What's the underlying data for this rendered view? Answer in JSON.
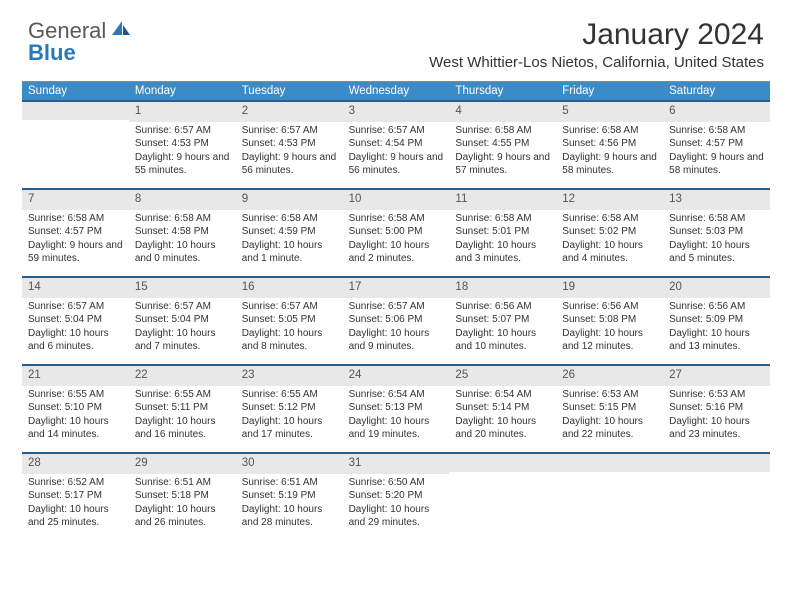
{
  "brand": {
    "part1": "General",
    "part2": "Blue"
  },
  "title": "January 2024",
  "subtitle": "West Whittier-Los Nietos, California, United States",
  "colors": {
    "header_bg": "#3b8bc8",
    "row_border": "#2a5d8a",
    "daynum_bg": "#e8e8e8",
    "text": "#333333",
    "logo_gray": "#595959",
    "logo_blue": "#2a79b8"
  },
  "weekdays": [
    "Sunday",
    "Monday",
    "Tuesday",
    "Wednesday",
    "Thursday",
    "Friday",
    "Saturday"
  ],
  "weeks": [
    [
      {
        "n": "",
        "sr": "",
        "ss": "",
        "dl": ""
      },
      {
        "n": "1",
        "sr": "Sunrise: 6:57 AM",
        "ss": "Sunset: 4:53 PM",
        "dl": "Daylight: 9 hours and 55 minutes."
      },
      {
        "n": "2",
        "sr": "Sunrise: 6:57 AM",
        "ss": "Sunset: 4:53 PM",
        "dl": "Daylight: 9 hours and 56 minutes."
      },
      {
        "n": "3",
        "sr": "Sunrise: 6:57 AM",
        "ss": "Sunset: 4:54 PM",
        "dl": "Daylight: 9 hours and 56 minutes."
      },
      {
        "n": "4",
        "sr": "Sunrise: 6:58 AM",
        "ss": "Sunset: 4:55 PM",
        "dl": "Daylight: 9 hours and 57 minutes."
      },
      {
        "n": "5",
        "sr": "Sunrise: 6:58 AM",
        "ss": "Sunset: 4:56 PM",
        "dl": "Daylight: 9 hours and 58 minutes."
      },
      {
        "n": "6",
        "sr": "Sunrise: 6:58 AM",
        "ss": "Sunset: 4:57 PM",
        "dl": "Daylight: 9 hours and 58 minutes."
      }
    ],
    [
      {
        "n": "7",
        "sr": "Sunrise: 6:58 AM",
        "ss": "Sunset: 4:57 PM",
        "dl": "Daylight: 9 hours and 59 minutes."
      },
      {
        "n": "8",
        "sr": "Sunrise: 6:58 AM",
        "ss": "Sunset: 4:58 PM",
        "dl": "Daylight: 10 hours and 0 minutes."
      },
      {
        "n": "9",
        "sr": "Sunrise: 6:58 AM",
        "ss": "Sunset: 4:59 PM",
        "dl": "Daylight: 10 hours and 1 minute."
      },
      {
        "n": "10",
        "sr": "Sunrise: 6:58 AM",
        "ss": "Sunset: 5:00 PM",
        "dl": "Daylight: 10 hours and 2 minutes."
      },
      {
        "n": "11",
        "sr": "Sunrise: 6:58 AM",
        "ss": "Sunset: 5:01 PM",
        "dl": "Daylight: 10 hours and 3 minutes."
      },
      {
        "n": "12",
        "sr": "Sunrise: 6:58 AM",
        "ss": "Sunset: 5:02 PM",
        "dl": "Daylight: 10 hours and 4 minutes."
      },
      {
        "n": "13",
        "sr": "Sunrise: 6:58 AM",
        "ss": "Sunset: 5:03 PM",
        "dl": "Daylight: 10 hours and 5 minutes."
      }
    ],
    [
      {
        "n": "14",
        "sr": "Sunrise: 6:57 AM",
        "ss": "Sunset: 5:04 PM",
        "dl": "Daylight: 10 hours and 6 minutes."
      },
      {
        "n": "15",
        "sr": "Sunrise: 6:57 AM",
        "ss": "Sunset: 5:04 PM",
        "dl": "Daylight: 10 hours and 7 minutes."
      },
      {
        "n": "16",
        "sr": "Sunrise: 6:57 AM",
        "ss": "Sunset: 5:05 PM",
        "dl": "Daylight: 10 hours and 8 minutes."
      },
      {
        "n": "17",
        "sr": "Sunrise: 6:57 AM",
        "ss": "Sunset: 5:06 PM",
        "dl": "Daylight: 10 hours and 9 minutes."
      },
      {
        "n": "18",
        "sr": "Sunrise: 6:56 AM",
        "ss": "Sunset: 5:07 PM",
        "dl": "Daylight: 10 hours and 10 minutes."
      },
      {
        "n": "19",
        "sr": "Sunrise: 6:56 AM",
        "ss": "Sunset: 5:08 PM",
        "dl": "Daylight: 10 hours and 12 minutes."
      },
      {
        "n": "20",
        "sr": "Sunrise: 6:56 AM",
        "ss": "Sunset: 5:09 PM",
        "dl": "Daylight: 10 hours and 13 minutes."
      }
    ],
    [
      {
        "n": "21",
        "sr": "Sunrise: 6:55 AM",
        "ss": "Sunset: 5:10 PM",
        "dl": "Daylight: 10 hours and 14 minutes."
      },
      {
        "n": "22",
        "sr": "Sunrise: 6:55 AM",
        "ss": "Sunset: 5:11 PM",
        "dl": "Daylight: 10 hours and 16 minutes."
      },
      {
        "n": "23",
        "sr": "Sunrise: 6:55 AM",
        "ss": "Sunset: 5:12 PM",
        "dl": "Daylight: 10 hours and 17 minutes."
      },
      {
        "n": "24",
        "sr": "Sunrise: 6:54 AM",
        "ss": "Sunset: 5:13 PM",
        "dl": "Daylight: 10 hours and 19 minutes."
      },
      {
        "n": "25",
        "sr": "Sunrise: 6:54 AM",
        "ss": "Sunset: 5:14 PM",
        "dl": "Daylight: 10 hours and 20 minutes."
      },
      {
        "n": "26",
        "sr": "Sunrise: 6:53 AM",
        "ss": "Sunset: 5:15 PM",
        "dl": "Daylight: 10 hours and 22 minutes."
      },
      {
        "n": "27",
        "sr": "Sunrise: 6:53 AM",
        "ss": "Sunset: 5:16 PM",
        "dl": "Daylight: 10 hours and 23 minutes."
      }
    ],
    [
      {
        "n": "28",
        "sr": "Sunrise: 6:52 AM",
        "ss": "Sunset: 5:17 PM",
        "dl": "Daylight: 10 hours and 25 minutes."
      },
      {
        "n": "29",
        "sr": "Sunrise: 6:51 AM",
        "ss": "Sunset: 5:18 PM",
        "dl": "Daylight: 10 hours and 26 minutes."
      },
      {
        "n": "30",
        "sr": "Sunrise: 6:51 AM",
        "ss": "Sunset: 5:19 PM",
        "dl": "Daylight: 10 hours and 28 minutes."
      },
      {
        "n": "31",
        "sr": "Sunrise: 6:50 AM",
        "ss": "Sunset: 5:20 PM",
        "dl": "Daylight: 10 hours and 29 minutes."
      },
      {
        "n": "",
        "sr": "",
        "ss": "",
        "dl": ""
      },
      {
        "n": "",
        "sr": "",
        "ss": "",
        "dl": ""
      },
      {
        "n": "",
        "sr": "",
        "ss": "",
        "dl": ""
      }
    ]
  ]
}
